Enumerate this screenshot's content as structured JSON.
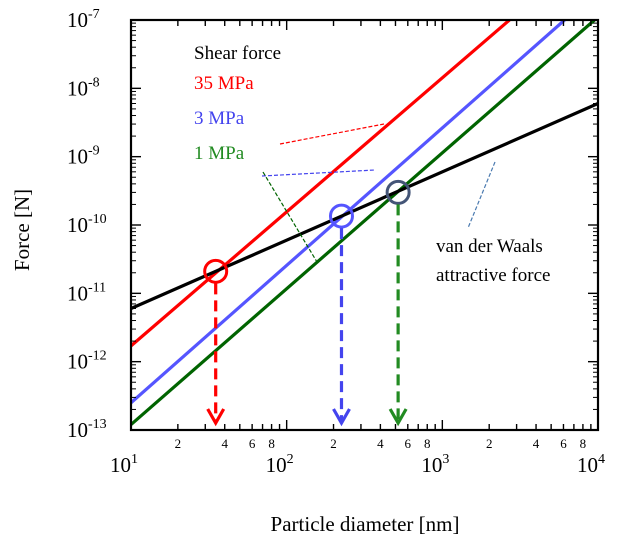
{
  "chart_data": {
    "type": "line",
    "title": "",
    "xlabel": "Particle diameter [nm]",
    "ylabel": "Force [N]",
    "xscale": "log",
    "yscale": "log",
    "xlim": [
      10,
      10000
    ],
    "ylim": [
      1e-13,
      1e-07
    ],
    "x_major_ticks": [
      {
        "value": 10,
        "base": "10",
        "exp": "1"
      },
      {
        "value": 100,
        "base": "10",
        "exp": "2"
      },
      {
        "value": 1000,
        "base": "10",
        "exp": "3"
      },
      {
        "value": 10000,
        "base": "10",
        "exp": "4"
      }
    ],
    "x_minor_labels": [
      {
        "value": 20,
        "label": "2"
      },
      {
        "value": 40,
        "label": "4"
      },
      {
        "value": 60,
        "label": "6"
      },
      {
        "value": 80,
        "label": "8"
      },
      {
        "value": 200,
        "label": "2"
      },
      {
        "value": 400,
        "label": "4"
      },
      {
        "value": 600,
        "label": "6"
      },
      {
        "value": 800,
        "label": "8"
      },
      {
        "value": 2000,
        "label": "2"
      },
      {
        "value": 4000,
        "label": "4"
      },
      {
        "value": 6000,
        "label": "6"
      },
      {
        "value": 8000,
        "label": "8"
      }
    ],
    "y_major_ticks": [
      {
        "value": 1e-13,
        "base": "10",
        "exp": "-13"
      },
      {
        "value": 1e-12,
        "base": "10",
        "exp": "-12"
      },
      {
        "value": 1e-11,
        "base": "10",
        "exp": "-11"
      },
      {
        "value": 1e-10,
        "base": "10",
        "exp": "-10"
      },
      {
        "value": 1e-09,
        "base": "10",
        "exp": "-9"
      },
      {
        "value": 1e-08,
        "base": "10",
        "exp": "-8"
      },
      {
        "value": 1e-07,
        "base": "10",
        "exp": "-7"
      }
    ],
    "grid": false,
    "series": [
      {
        "color": "#ff0000",
        "x": [
          10,
          2700
        ],
        "y": [
          1.7e-12,
          1e-07
        ]
      },
      {
        "color": "#5555ff",
        "x": [
          10,
          6100
        ],
        "y": [
          2.5e-13,
          1e-07
        ]
      },
      {
        "color": "#006400",
        "x": [
          10,
          9500
        ],
        "y": [
          1.2e-13,
          1e-07
        ]
      },
      {
        "color": "#000000",
        "x": [
          10,
          10000
        ],
        "y": [
          6e-12,
          6e-09
        ]
      }
    ],
    "intersections": [
      {
        "x": 35,
        "y": 2.1e-11,
        "color": "#ff0000"
      },
      {
        "x": 225,
        "y": 1.35e-10,
        "color": "#5555ff"
      },
      {
        "x": 520,
        "y": 3e-10,
        "color": "#445577"
      }
    ],
    "drop_arrows": [
      {
        "x": 35,
        "from_y": 2.1e-11,
        "color": "#ff0000"
      },
      {
        "x": 225,
        "from_y": 1.35e-10,
        "color": "#4444ee"
      },
      {
        "x": 520,
        "from_y": 3e-10,
        "color": "#228b22"
      }
    ],
    "annotations": {
      "shear_heading": "Shear force",
      "labels": [
        {
          "text": "35 MPa",
          "color": "#ff0000"
        },
        {
          "text": "3 MPa",
          "color": "#4444ee"
        },
        {
          "text": "1 MPa",
          "color": "#228b22"
        }
      ],
      "vdw_line1": "van der Waals",
      "vdw_line2": "attractive force"
    }
  }
}
